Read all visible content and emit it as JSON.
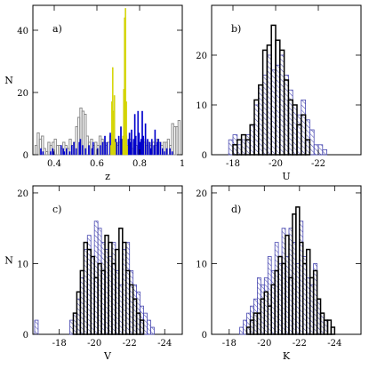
{
  "chart_data": [
    {
      "panel_label": "a)",
      "type": "bar",
      "xlabel": "z",
      "ylabel": "N",
      "xlim": [
        0.3,
        1.0
      ],
      "ylim": [
        0,
        48
      ],
      "xticks": [
        {
          "v": 0.4,
          "label": "0.4"
        },
        {
          "v": 0.6,
          "label": "0.6"
        },
        {
          "v": 0.8,
          "label": "0.8"
        },
        {
          "v": 1.0,
          "label": "1"
        }
      ],
      "yticks": [
        {
          "v": 0,
          "label": "0"
        },
        {
          "v": 20,
          "label": "20"
        },
        {
          "v": 40,
          "label": "40"
        }
      ],
      "colors": {
        "grey": "#8c8c8c",
        "blue": "#0000cc",
        "yellow": "#f2f21a",
        "yellow_edge": "#c8c800"
      },
      "series": [
        {
          "style": "grey-outline",
          "bin_width": 0.01,
          "x": [
            0.3,
            0.31,
            0.32,
            0.33,
            0.34,
            0.35,
            0.36,
            0.37,
            0.38,
            0.39,
            0.4,
            0.41,
            0.42,
            0.43,
            0.44,
            0.45,
            0.46,
            0.47,
            0.48,
            0.49,
            0.5,
            0.51,
            0.52,
            0.53,
            0.54,
            0.55,
            0.56,
            0.57,
            0.58,
            0.59,
            0.6,
            0.61,
            0.62,
            0.63,
            0.64,
            0.65,
            0.66,
            0.67,
            0.68,
            0.69,
            0.7,
            0.71,
            0.72,
            0.73,
            0.74,
            0.75,
            0.76,
            0.77,
            0.78,
            0.79,
            0.8,
            0.81,
            0.82,
            0.83,
            0.84,
            0.85,
            0.86,
            0.87,
            0.88,
            0.89,
            0.9,
            0.91,
            0.92,
            0.93,
            0.94,
            0.95,
            0.96,
            0.97,
            0.98,
            0.99
          ],
          "values": [
            0,
            3,
            7,
            5,
            6,
            2,
            1,
            4,
            3,
            4,
            5,
            3,
            3,
            2,
            4,
            3,
            2,
            5,
            3,
            4,
            9,
            12,
            15,
            14,
            13,
            6,
            4,
            5,
            3,
            4,
            3,
            6,
            5,
            4,
            3,
            4,
            6,
            4,
            5,
            3,
            4,
            5,
            4,
            6,
            3,
            5,
            2,
            4,
            3,
            3,
            4,
            5,
            4,
            3,
            4,
            3,
            4,
            3,
            5,
            4,
            3,
            4,
            4,
            5,
            3,
            10,
            9,
            9,
            11,
            0
          ]
        },
        {
          "style": "blue-fill",
          "bin_width": 0.005,
          "x": [
            0.335,
            0.345,
            0.38,
            0.39,
            0.395,
            0.43,
            0.44,
            0.445,
            0.455,
            0.47,
            0.48,
            0.49,
            0.5,
            0.515,
            0.52,
            0.53,
            0.545,
            0.56,
            0.575,
            0.58,
            0.6,
            0.615,
            0.625,
            0.635,
            0.645,
            0.66,
            0.685,
            0.69,
            0.7,
            0.71,
            0.715,
            0.725,
            0.745,
            0.75,
            0.755,
            0.76,
            0.77,
            0.775,
            0.78,
            0.79,
            0.795,
            0.8,
            0.805,
            0.81,
            0.815,
            0.825,
            0.835,
            0.845,
            0.85,
            0.855,
            0.865,
            0.87,
            0.88,
            0.885,
            0.895,
            0.905,
            0.915,
            0.925,
            0.94,
            0.95
          ],
          "values": [
            2,
            1,
            1,
            2,
            1,
            3,
            2,
            1,
            2,
            1,
            3,
            4,
            2,
            4,
            5,
            3,
            2,
            3,
            2,
            4,
            2,
            3,
            4,
            6,
            4,
            7,
            5,
            4,
            6,
            9,
            5,
            7,
            5,
            7,
            4,
            8,
            5,
            13,
            6,
            14,
            7,
            4,
            5,
            14,
            6,
            10,
            5,
            4,
            2,
            5,
            3,
            8,
            4,
            5,
            4,
            2,
            1,
            2,
            2,
            1
          ]
        },
        {
          "style": "yellow-fill",
          "bin_width": 0.004,
          "x": [
            0.664,
            0.668,
            0.672,
            0.676,
            0.68,
            0.684,
            0.72,
            0.724,
            0.728,
            0.732,
            0.736,
            0.74
          ],
          "values": [
            3,
            17,
            28,
            14,
            19,
            4,
            6,
            21,
            44,
            47,
            17,
            3
          ]
        }
      ]
    },
    {
      "panel_label": "b)",
      "type": "bar",
      "xlabel": "U",
      "ylabel": "",
      "xlim": [
        -17,
        -24
      ],
      "ylim": [
        0,
        30
      ],
      "xticks": [
        {
          "v": -18,
          "label": "-18"
        },
        {
          "v": -20,
          "label": "-20"
        },
        {
          "v": -22,
          "label": "-22"
        }
      ],
      "yticks": [
        {
          "v": 0,
          "label": "0"
        },
        {
          "v": 10,
          "label": "10"
        },
        {
          "v": 20,
          "label": "20"
        }
      ],
      "colors": {
        "black": "#000000",
        "hatch": "#4848b0"
      },
      "series": [
        {
          "style": "hatched",
          "bin_width": 0.2,
          "x": [
            -17.8,
            -18.0,
            -18.2,
            -18.4,
            -18.6,
            -18.8,
            -19.0,
            -19.2,
            -19.4,
            -19.6,
            -19.8,
            -20.0,
            -20.2,
            -20.4,
            -20.6,
            -20.8,
            -21.0,
            -21.2,
            -21.4,
            -21.6,
            -21.8,
            -22.0,
            -22.2
          ],
          "values": [
            3,
            4,
            2,
            3,
            4,
            6,
            10,
            14,
            16,
            20,
            17,
            18,
            20,
            16,
            13,
            10,
            8,
            11,
            7,
            5,
            2,
            2,
            1
          ]
        },
        {
          "style": "black-outline",
          "bin_width": 0.2,
          "x": [
            -18.0,
            -18.2,
            -18.4,
            -18.6,
            -18.8,
            -19.0,
            -19.2,
            -19.4,
            -19.6,
            -19.8,
            -20.0,
            -20.2,
            -20.4,
            -20.6,
            -20.8,
            -21.0,
            -21.2,
            -21.4,
            -21.6
          ],
          "values": [
            2,
            3,
            4,
            3,
            6,
            11,
            14,
            21,
            22,
            26,
            23,
            21,
            15,
            11,
            10,
            6,
            8,
            3,
            0
          ]
        }
      ]
    },
    {
      "panel_label": "c)",
      "type": "bar",
      "xlabel": "V",
      "ylabel": "N",
      "xlim": [
        -16.5,
        -25
      ],
      "ylim": [
        0,
        21
      ],
      "xticks": [
        {
          "v": -18,
          "label": "-18"
        },
        {
          "v": -20,
          "label": "-20"
        },
        {
          "v": -22,
          "label": "-22"
        },
        {
          "v": -24,
          "label": "-24"
        }
      ],
      "yticks": [
        {
          "v": 0,
          "label": "0"
        },
        {
          "v": 10,
          "label": "10"
        },
        {
          "v": 20,
          "label": "20"
        }
      ],
      "colors": {
        "black": "#000000",
        "hatch": "#4848b0"
      },
      "series": [
        {
          "style": "hatched",
          "bin_width": 0.2,
          "x": [
            -16.6,
            -18.6,
            -18.8,
            -19.0,
            -19.2,
            -19.4,
            -19.6,
            -19.8,
            -20.0,
            -20.2,
            -20.4,
            -20.6,
            -20.8,
            -21.0,
            -21.2,
            -21.4,
            -21.6,
            -21.8,
            -22.0,
            -22.2,
            -22.4,
            -22.6,
            -22.8,
            -23.0,
            -23.2
          ],
          "values": [
            2,
            2,
            3,
            5,
            8,
            12,
            14,
            11,
            16,
            15,
            13,
            12,
            11,
            13,
            9,
            7,
            12,
            13,
            9,
            7,
            6,
            4,
            3,
            2,
            1
          ]
        },
        {
          "style": "black-outline",
          "bin_width": 0.2,
          "x": [
            -18.8,
            -19.0,
            -19.2,
            -19.4,
            -19.6,
            -19.8,
            -20.0,
            -20.2,
            -20.4,
            -20.6,
            -20.8,
            -21.0,
            -21.2,
            -21.4,
            -21.6,
            -21.8,
            -22.0,
            -22.2,
            -22.4,
            -22.6,
            -22.8
          ],
          "values": [
            3,
            6,
            9,
            13,
            12,
            11,
            8,
            10,
            9,
            14,
            13,
            10,
            12,
            15,
            13,
            9,
            7,
            5,
            3,
            2,
            0
          ]
        }
      ]
    },
    {
      "panel_label": "d)",
      "type": "bar",
      "xlabel": "K",
      "ylabel": "",
      "xlim": [
        -17,
        -25.5
      ],
      "ylim": [
        0,
        21
      ],
      "xticks": [
        {
          "v": -18,
          "label": "-18"
        },
        {
          "v": -20,
          "label": "-20"
        },
        {
          "v": -22,
          "label": "-22"
        },
        {
          "v": -24,
          "label": "-24"
        }
      ],
      "yticks": [
        {
          "v": 0,
          "label": "0"
        },
        {
          "v": 10,
          "label": "10"
        },
        {
          "v": 20,
          "label": "20"
        }
      ],
      "colors": {
        "black": "#000000",
        "hatch": "#4848b0"
      },
      "series": [
        {
          "style": "hatched",
          "bin_width": 0.2,
          "x": [
            -18.6,
            -18.8,
            -19.0,
            -19.2,
            -19.4,
            -19.6,
            -19.8,
            -20.0,
            -20.2,
            -20.4,
            -20.6,
            -20.8,
            -21.0,
            -21.2,
            -21.4,
            -21.6,
            -21.8,
            -22.0,
            -22.2,
            -22.4,
            -22.6,
            -22.8,
            -23.0,
            -23.2,
            -23.4
          ],
          "values": [
            1,
            2,
            3,
            4,
            5,
            8,
            7,
            8,
            11,
            9,
            13,
            10,
            15,
            11,
            15,
            13,
            10,
            16,
            11,
            8,
            7,
            10,
            5,
            3,
            2
          ]
        },
        {
          "style": "black-outline",
          "bin_width": 0.2,
          "x": [
            -19.0,
            -19.2,
            -19.4,
            -19.6,
            -19.8,
            -20.0,
            -20.2,
            -20.4,
            -20.6,
            -20.8,
            -21.0,
            -21.2,
            -21.4,
            -21.6,
            -21.8,
            -22.0,
            -22.2,
            -22.4,
            -22.6,
            -22.8,
            -23.0,
            -23.2,
            -23.4,
            -23.6,
            -23.8,
            -24.0
          ],
          "values": [
            1,
            2,
            3,
            3,
            5,
            6,
            4,
            7,
            9,
            11,
            10,
            14,
            8,
            17,
            18,
            13,
            10,
            12,
            8,
            9,
            5,
            3,
            2,
            2,
            1,
            0
          ]
        }
      ]
    }
  ]
}
